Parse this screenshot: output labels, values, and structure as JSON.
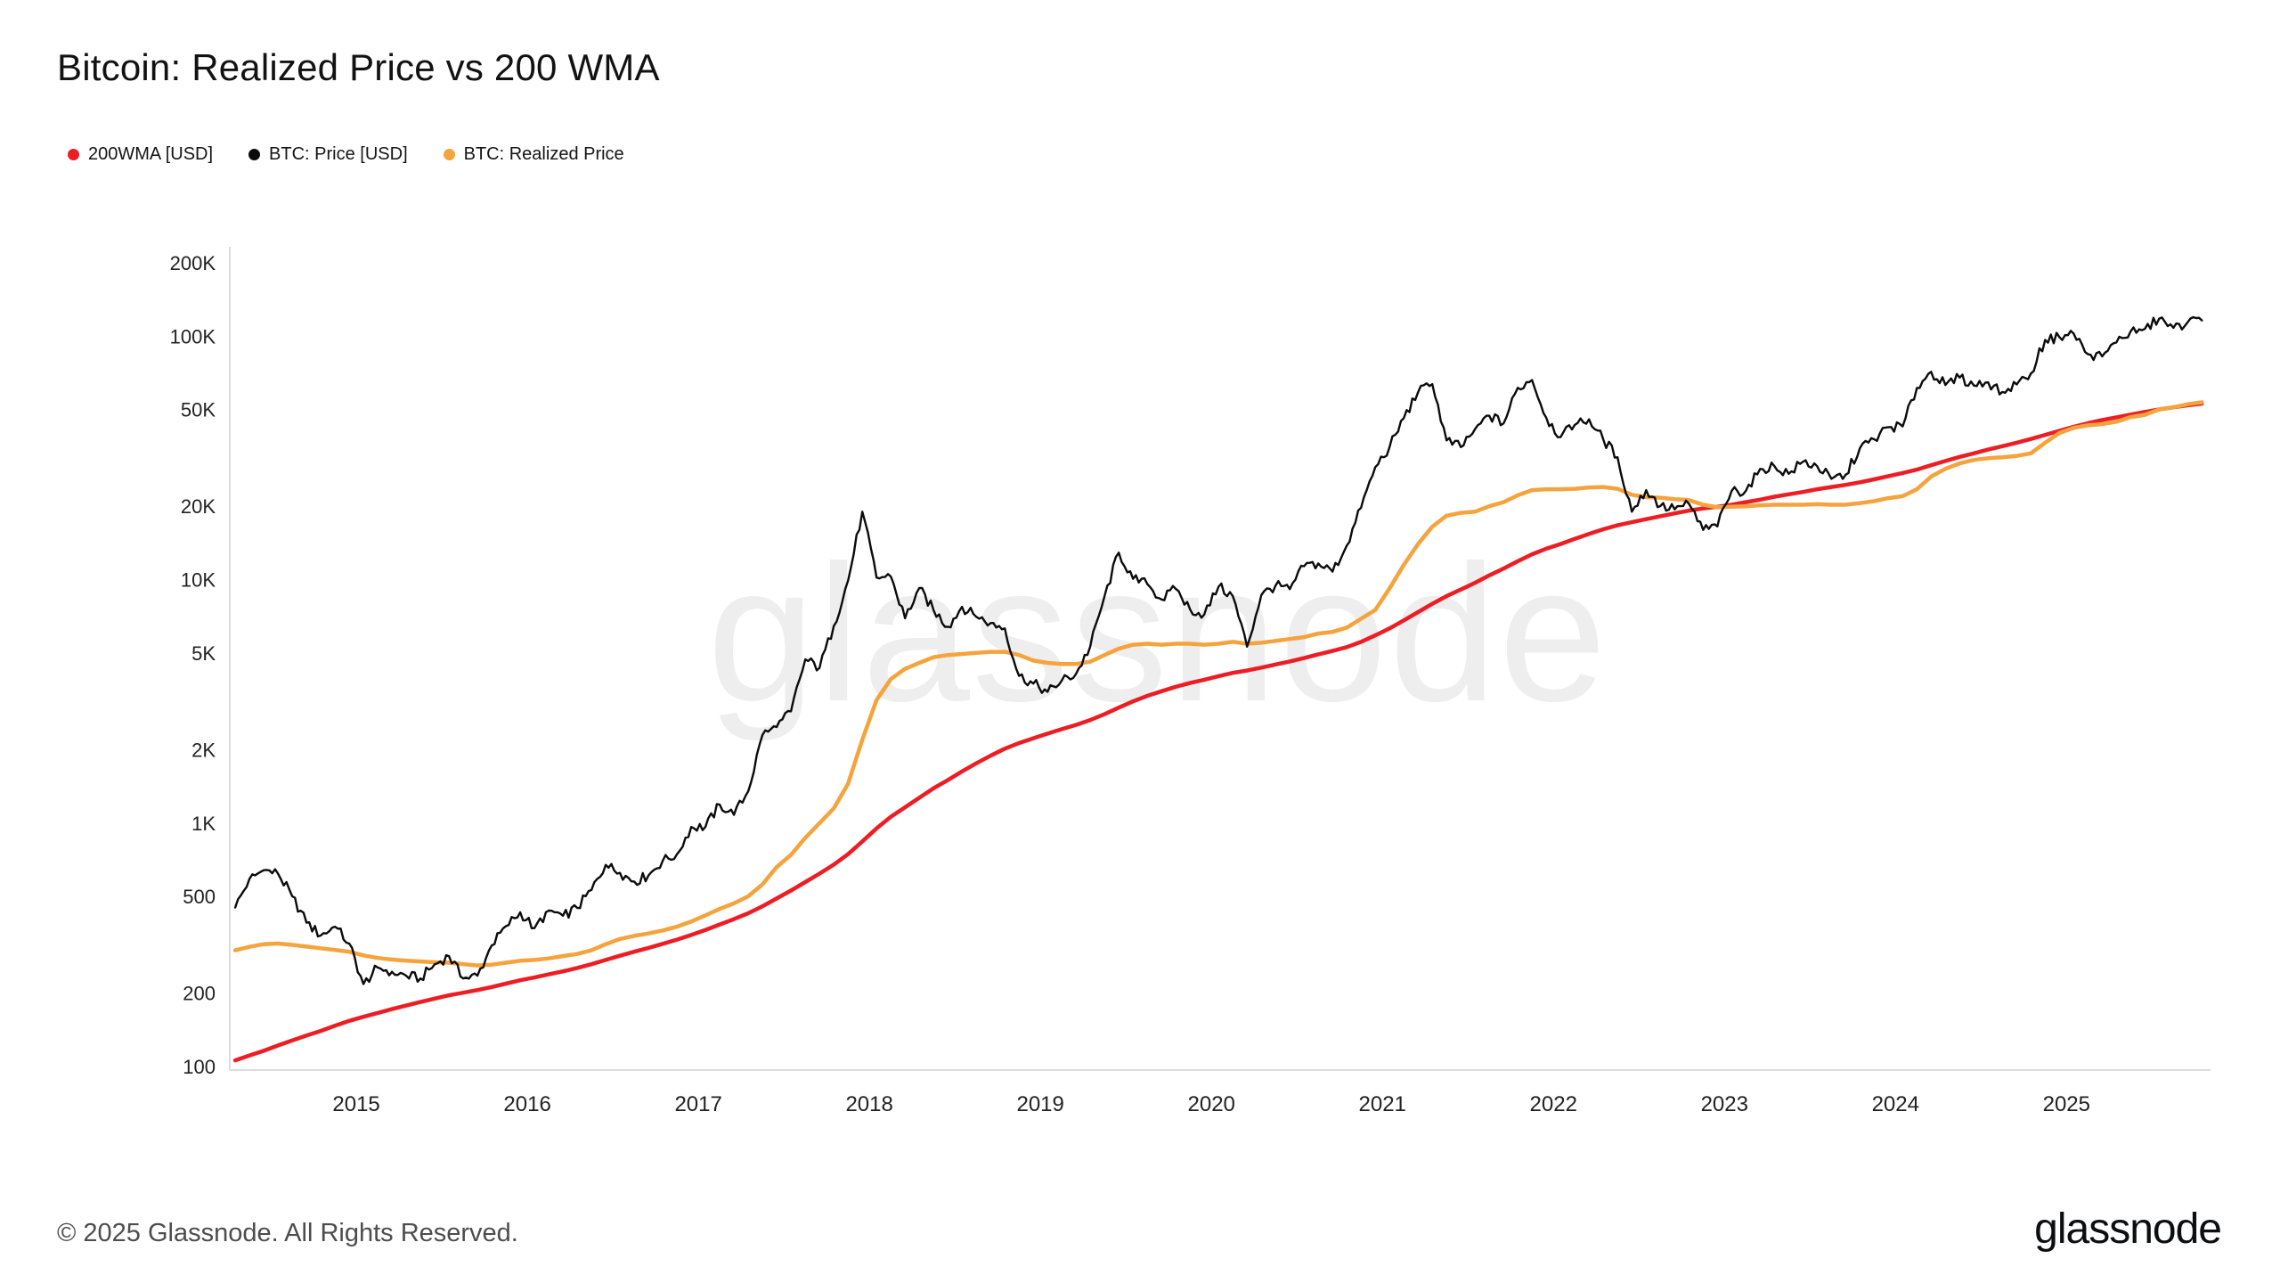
{
  "header": {
    "title": "Bitcoin: Realized Price vs 200 WMA"
  },
  "legend": [
    {
      "label": "200WMA [USD]",
      "color": "#ed1d24"
    },
    {
      "label": "BTC: Price [USD]",
      "color": "#0b0b0b"
    },
    {
      "label": "BTC: Realized Price",
      "color": "#f5a33c"
    }
  ],
  "watermark": "glassnode",
  "footer": {
    "copyright": "© 2025 Glassnode. All Rights Reserved.",
    "logo": "glassnode"
  },
  "chart_data": {
    "type": "line",
    "title": "Bitcoin: Realized Price vs 200 WMA",
    "grid": false,
    "legend_position": "top-left",
    "x_axis": {
      "start_month": "2014-04",
      "frequency": "monthly",
      "domain": [
        2014.26,
        2025.79
      ],
      "tick_labels": [
        "2015",
        "2016",
        "2017",
        "2018",
        "2019",
        "2020",
        "2021",
        "2022",
        "2023",
        "2024",
        "2025"
      ]
    },
    "y_axis": {
      "scale": "log",
      "domain": [
        100,
        200000
      ],
      "tick_values": [
        100,
        200,
        500,
        1000,
        2000,
        5000,
        10000,
        20000,
        50000,
        100000,
        200000
      ],
      "tick_labels": [
        "100",
        "200",
        "500",
        "1K",
        "2K",
        "5K",
        "10K",
        "20K",
        "50K",
        "100K",
        "200K"
      ]
    },
    "series": [
      {
        "id": "200wma-usd",
        "name": "200WMA [USD]",
        "color": "#ed1d24",
        "line_width": 4.5,
        "noisy": false,
        "values": [
          106,
          111,
          116,
          122,
          128,
          134,
          140,
          147,
          154,
          160,
          166,
          172,
          178,
          184,
          190,
          196,
          201,
          206,
          212,
          219,
          226,
          232,
          239,
          246,
          254,
          263,
          274,
          285,
          296,
          307,
          319,
          332,
          347,
          364,
          383,
          403,
          426,
          455,
          490,
          528,
          572,
          620,
          675,
          745,
          840,
          950,
          1060,
          1160,
          1270,
          1390,
          1500,
          1630,
          1760,
          1890,
          2020,
          2130,
          2230,
          2330,
          2430,
          2530,
          2650,
          2800,
          2980,
          3160,
          3330,
          3480,
          3630,
          3760,
          3880,
          4010,
          4140,
          4230,
          4350,
          4480,
          4610,
          4760,
          4930,
          5090,
          5280,
          5550,
          5900,
          6300,
          6800,
          7350,
          7950,
          8550,
          9100,
          9700,
          10400,
          11100,
          11900,
          12700,
          13400,
          14000,
          14700,
          15400,
          16100,
          16700,
          17200,
          17700,
          18200,
          18700,
          19200,
          19600,
          19900,
          20300,
          20800,
          21300,
          21900,
          22400,
          22900,
          23500,
          24000,
          24500,
          25100,
          25800,
          26600,
          27400,
          28300,
          29500,
          30700,
          31900,
          33000,
          34200,
          35300,
          36500,
          37800,
          39300,
          40800,
          42400,
          43900,
          45200,
          46400,
          47600,
          48800,
          50000,
          51000,
          52000,
          52800
        ]
      },
      {
        "id": "btc-price-usd",
        "name": "BTC: Price [USD]",
        "color": "#0b0b0b",
        "line_width": 2.4,
        "noisy": true,
        "values": [
          450,
          590,
          640,
          620,
          500,
          390,
          345,
          375,
          320,
          218,
          255,
          245,
          236,
          230,
          263,
          284,
          230,
          236,
          314,
          377,
          430,
          370,
          437,
          416,
          448,
          531,
          673,
          624,
          575,
          609,
          700,
          744,
          963,
          965,
          1190,
          1080,
          1350,
          2300,
          2480,
          2875,
          4700,
          4340,
          6450,
          9900,
          19000,
          10200,
          10300,
          6940,
          9240,
          7490,
          6400,
          7730,
          7030,
          6630,
          6300,
          4020,
          3740,
          3460,
          3850,
          4100,
          5320,
          8560,
          12900,
          10080,
          9590,
          8290,
          9150,
          7550,
          7190,
          9350,
          8550,
          5300,
          8630,
          9450,
          9140,
          11350,
          11650,
          10780,
          13800,
          19700,
          29000,
          35000,
          46000,
          58800,
          63500,
          37300,
          35000,
          41500,
          47100,
          43800,
          61300,
          66000,
          46200,
          38480,
          43200,
          45540,
          37650,
          31800,
          19000,
          23300,
          20050,
          19430,
          20490,
          16000,
          16540,
          23130,
          23140,
          28480,
          29250,
          27220,
          30470,
          29230,
          25930,
          26960,
          34650,
          37720,
          42270,
          42580,
          61200,
          71330,
          63000,
          67530,
          62680,
          64620,
          58970,
          63330,
          70220,
          96450,
          99000,
          102400,
          84350,
          82550,
          94180,
          104600,
          107140,
          118000,
          108240,
          114000,
          116000
        ]
      },
      {
        "id": "btc-realized-price",
        "name": "BTC: Realized Price",
        "color": "#f5a33c",
        "line_width": 4.5,
        "noisy": false,
        "values": [
          300,
          310,
          318,
          320,
          316,
          311,
          306,
          301,
          296,
          286,
          279,
          275,
          272,
          270,
          268,
          267,
          263,
          260,
          262,
          267,
          272,
          274,
          278,
          284,
          290,
          300,
          318,
          334,
          344,
          352,
          362,
          375,
          394,
          418,
          444,
          468,
          500,
          560,
          660,
          740,
          870,
          1000,
          1150,
          1450,
          2200,
          3200,
          3900,
          4300,
          4550,
          4800,
          4900,
          4950,
          5000,
          5050,
          5050,
          4900,
          4650,
          4550,
          4500,
          4500,
          4600,
          4900,
          5200,
          5400,
          5450,
          5400,
          5450,
          5450,
          5400,
          5450,
          5550,
          5450,
          5500,
          5600,
          5700,
          5800,
          6000,
          6100,
          6350,
          6900,
          7500,
          9200,
          11500,
          14000,
          16500,
          18300,
          18800,
          19000,
          20000,
          20800,
          22200,
          23300,
          23500,
          23500,
          23600,
          23900,
          24000,
          23600,
          22300,
          21800,
          21700,
          21400,
          21200,
          20300,
          19800,
          19900,
          20000,
          20200,
          20300,
          20300,
          20300,
          20400,
          20300,
          20300,
          20600,
          21000,
          21600,
          22000,
          23500,
          26500,
          28500,
          30000,
          31000,
          31500,
          31800,
          32200,
          33000,
          36500,
          40000,
          42000,
          43000,
          43500,
          44500,
          46500,
          47500,
          50000,
          51000,
          52500,
          53500
        ]
      }
    ]
  }
}
